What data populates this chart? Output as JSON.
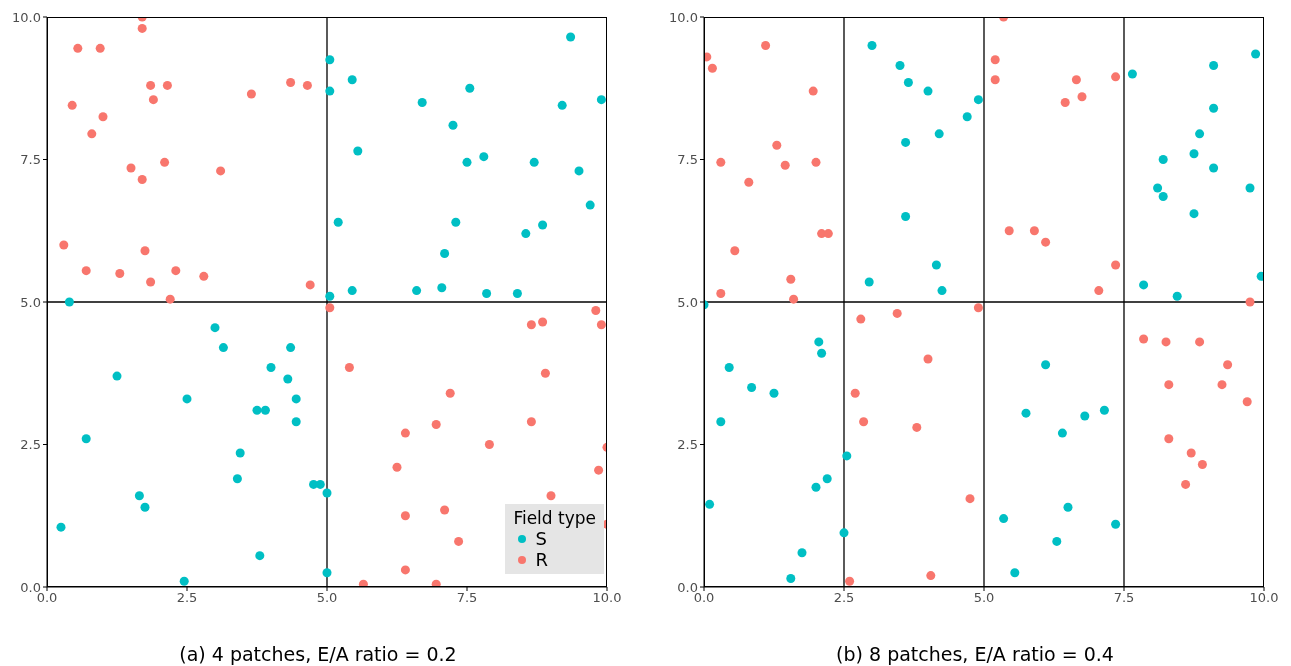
{
  "chart_data": [
    {
      "type": "scatter",
      "title": "(a) 4 patches, E/A ratio = 0.2",
      "legend_title": "Field type",
      "legend": "bottom right",
      "grid": false,
      "marker": "circle",
      "xlim": [
        0,
        10
      ],
      "ylim": [
        0,
        10
      ],
      "xticks": [
        {
          "value": 0,
          "label": "0.0"
        },
        {
          "value": 2.5,
          "label": "2.5"
        },
        {
          "value": 5,
          "label": "5.0"
        },
        {
          "value": 7.5,
          "label": "7.5"
        },
        {
          "value": 10,
          "label": "10.0"
        }
      ],
      "yticks": [
        {
          "value": 0,
          "label": "0.0"
        },
        {
          "value": 2.5,
          "label": "2.5"
        },
        {
          "value": 5,
          "label": "5.0"
        },
        {
          "value": 7.5,
          "label": "7.5"
        },
        {
          "value": 10,
          "label": "10.0"
        }
      ],
      "ref_lines": [
        {
          "axis": "x",
          "value": 5,
          "color": "#000000"
        },
        {
          "axis": "y",
          "value": 5,
          "color": "#000000"
        }
      ],
      "series": [
        {
          "name": "S",
          "color": "#00bfc4",
          "x": [
            0.25,
            0.4,
            0.7,
            1.25,
            1.65,
            1.75,
            2.45,
            2.5,
            3.0,
            3.15,
            3.4,
            3.45,
            3.75,
            3.8,
            3.9,
            4.0,
            4.3,
            4.35,
            4.45,
            4.45,
            4.76,
            4.88,
            5.0,
            5.0,
            5.05,
            5.05,
            5.05,
            5.2,
            5.45,
            5.45,
            5.55,
            6.6,
            6.7,
            7.05,
            7.1,
            7.25,
            7.3,
            7.5,
            7.55,
            7.8,
            7.85,
            8.4,
            8.55,
            8.7,
            8.85,
            9.2,
            9.35,
            9.5,
            9.7,
            9.9
          ],
          "values": [
            1.05,
            5.0,
            2.6,
            3.7,
            1.6,
            1.4,
            0.1,
            3.3,
            4.55,
            4.2,
            1.9,
            2.35,
            3.1,
            0.55,
            3.1,
            3.85,
            3.65,
            4.2,
            3.3,
            2.9,
            1.8,
            1.8,
            1.65,
            0.25,
            9.25,
            8.7,
            5.1,
            6.4,
            8.9,
            5.2,
            7.65,
            5.2,
            8.5,
            5.25,
            5.85,
            8.1,
            6.4,
            7.45,
            8.75,
            7.55,
            5.15,
            5.15,
            6.2,
            7.45,
            6.35,
            8.45,
            9.65,
            7.3,
            6.7,
            8.55
          ]
        },
        {
          "name": "R",
          "color": "#f8766d",
          "x": [
            0.3,
            0.55,
            0.45,
            0.95,
            1.0,
            0.8,
            0.7,
            1.3,
            1.5,
            1.7,
            1.7,
            1.7,
            1.75,
            1.85,
            1.9,
            1.85,
            2.1,
            2.15,
            2.2,
            2.3,
            2.8,
            3.1,
            3.65,
            4.35,
            4.65,
            4.7,
            5.05,
            5.4,
            5.65,
            6.25,
            6.4,
            6.4,
            6.4,
            6.95,
            6.95,
            7.1,
            7.2,
            7.35,
            7.9,
            8.65,
            8.65,
            8.85,
            8.9,
            9.0,
            9.8,
            9.9,
            9.85,
            10.0,
            10.0
          ],
          "values": [
            6.0,
            9.45,
            8.45,
            9.45,
            8.25,
            7.95,
            5.55,
            5.5,
            7.35,
            10.0,
            9.8,
            7.15,
            5.9,
            8.8,
            8.55,
            5.35,
            7.45,
            8.8,
            5.05,
            5.55,
            5.45,
            7.3,
            8.65,
            8.85,
            8.8,
            5.3,
            4.9,
            3.85,
            0.05,
            2.1,
            2.7,
            1.25,
            0.3,
            2.85,
            0.05,
            1.35,
            3.4,
            0.8,
            2.5,
            4.6,
            2.9,
            4.65,
            3.75,
            1.6,
            4.85,
            4.6,
            2.05,
            2.45,
            1.1
          ]
        }
      ]
    },
    {
      "type": "scatter",
      "title": "(b) 8 patches, E/A ratio = 0.4",
      "grid": false,
      "marker": "circle",
      "xlim": [
        0,
        10
      ],
      "ylim": [
        0,
        10
      ],
      "xticks": [
        {
          "value": 0,
          "label": "0.0"
        },
        {
          "value": 2.5,
          "label": "2.5"
        },
        {
          "value": 5,
          "label": "5.0"
        },
        {
          "value": 7.5,
          "label": "7.5"
        },
        {
          "value": 10,
          "label": "10.0"
        }
      ],
      "yticks": [
        {
          "value": 0,
          "label": "0.0"
        },
        {
          "value": 2.5,
          "label": "2.5"
        },
        {
          "value": 5,
          "label": "5.0"
        },
        {
          "value": 7.5,
          "label": "7.5"
        },
        {
          "value": 10,
          "label": "10.0"
        }
      ],
      "ref_lines": [
        {
          "axis": "x",
          "value": 2.5,
          "color": "#000000"
        },
        {
          "axis": "x",
          "value": 5,
          "color": "#000000"
        },
        {
          "axis": "x",
          "value": 7.5,
          "color": "#000000"
        },
        {
          "axis": "y",
          "value": 5,
          "color": "#000000"
        }
      ],
      "series": [
        {
          "color": "#00bfc4",
          "x": [
            0.0,
            0.1,
            0.3,
            0.45,
            0.85,
            1.25,
            1.55,
            1.75,
            2.0,
            2.05,
            2.1,
            2.2,
            2.5,
            2.55,
            2.95,
            3.0,
            3.5,
            3.6,
            3.6,
            3.65,
            4.0,
            4.15,
            4.2,
            4.25,
            4.7,
            4.9,
            5.35,
            5.55,
            5.75,
            6.1,
            6.3,
            6.4,
            6.5,
            6.8,
            7.15,
            7.35,
            7.65,
            7.85,
            8.1,
            8.2,
            8.2,
            8.45,
            8.75,
            8.75,
            8.85,
            9.1,
            9.1,
            9.1,
            9.75,
            9.85,
            9.95
          ],
          "values": [
            4.95,
            1.45,
            2.9,
            3.85,
            3.5,
            3.4,
            0.15,
            0.6,
            1.75,
            4.3,
            4.1,
            1.9,
            0.95,
            2.3,
            5.35,
            9.5,
            9.15,
            7.8,
            6.5,
            8.85,
            8.7,
            5.65,
            7.95,
            5.2,
            8.25,
            8.55,
            1.2,
            0.25,
            3.05,
            3.9,
            0.8,
            2.7,
            1.4,
            3.0,
            3.1,
            1.1,
            9.0,
            5.3,
            7.0,
            7.5,
            6.85,
            5.1,
            7.6,
            6.55,
            7.95,
            9.15,
            8.4,
            7.35,
            7.0,
            9.35,
            5.45
          ]
        },
        {
          "color": "#f8766d",
          "x": [
            0.05,
            0.15,
            0.3,
            0.3,
            0.55,
            0.8,
            1.1,
            1.3,
            1.45,
            1.55,
            1.6,
            1.95,
            2.0,
            2.1,
            2.22,
            2.6,
            2.7,
            2.8,
            2.85,
            3.45,
            3.8,
            4.0,
            4.05,
            4.75,
            4.9,
            5.2,
            5.2,
            5.35,
            5.45,
            5.9,
            6.1,
            6.45,
            6.65,
            6.75,
            7.05,
            7.35,
            7.35,
            7.85,
            8.25,
            8.3,
            8.3,
            8.6,
            8.7,
            8.85,
            8.9,
            9.25,
            9.35,
            9.7,
            9.75
          ],
          "values": [
            9.3,
            9.1,
            7.45,
            5.15,
            5.9,
            7.1,
            9.5,
            7.75,
            7.4,
            5.4,
            5.05,
            8.7,
            7.45,
            6.2,
            6.2,
            0.1,
            3.4,
            4.7,
            2.9,
            4.8,
            2.8,
            4.0,
            0.2,
            1.55,
            4.9,
            9.25,
            8.9,
            10.0,
            6.25,
            6.25,
            6.05,
            8.5,
            8.9,
            8.6,
            5.2,
            8.95,
            5.65,
            4.35,
            4.3,
            3.55,
            2.6,
            1.8,
            2.35,
            4.3,
            2.15,
            3.55,
            3.9,
            3.25,
            5.0
          ]
        }
      ]
    }
  ]
}
